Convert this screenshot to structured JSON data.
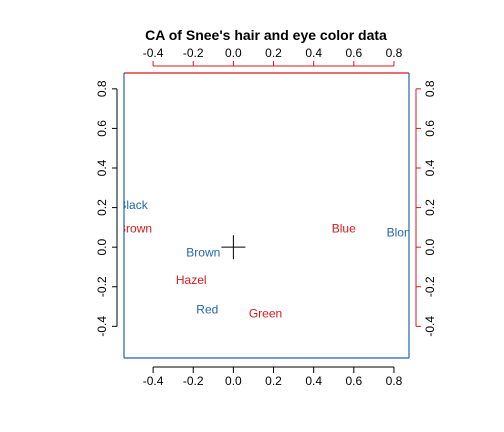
{
  "chart_data": {
    "type": "scatter",
    "title": "CA of Snee's hair and eye color data",
    "xlabel": "",
    "ylabel": "",
    "xlim": [
      -0.545,
      0.875
    ],
    "ylim": [
      -0.56,
      0.88
    ],
    "bottom_x_ticks": [
      -0.4,
      -0.2,
      0.0,
      0.2,
      0.4,
      0.6,
      0.8
    ],
    "left_y_ticks": [
      -0.4,
      -0.2,
      0.0,
      0.2,
      0.4,
      0.6,
      0.8
    ],
    "top_x_ticks": [
      -0.4,
      -0.2,
      0.0,
      0.2,
      0.4,
      0.6,
      0.8
    ],
    "right_y_ticks": [
      -0.4,
      -0.2,
      0.0,
      0.2,
      0.4,
      0.6,
      0.8
    ],
    "bottom_x_tick_labels": [
      "-0.4",
      "-0.2",
      "0.0",
      "0.2",
      "0.4",
      "0.6",
      "0.8"
    ],
    "left_y_tick_labels": [
      "-0.4",
      "-0.2",
      "0.0",
      "0.2",
      "0.4",
      "0.6",
      "0.8"
    ],
    "top_x_tick_labels": [
      "-0.4",
      "-0.2",
      "0.0",
      "0.2",
      "0.4",
      "0.6",
      "0.8"
    ],
    "right_y_tick_labels": [
      "-0.4",
      "-0.2",
      "0.0",
      "0.2",
      "0.4",
      "0.6",
      "0.8"
    ],
    "grid": false,
    "origin_marker": {
      "x": 0,
      "y": 0
    },
    "series": [
      {
        "color": "#2166ac",
        "points": [
          {
            "label": "Black",
            "x": -0.5,
            "y": 0.21
          },
          {
            "label": "Brown",
            "x": -0.15,
            "y": -0.03
          },
          {
            "label": "Red",
            "x": -0.13,
            "y": -0.32
          },
          {
            "label": "Blond",
            "x": 0.84,
            "y": 0.07
          }
        ]
      },
      {
        "color": "#d7191c",
        "points": [
          {
            "label": "Brown",
            "x": -0.49,
            "y": 0.09
          },
          {
            "label": "Hazel",
            "x": -0.21,
            "y": -0.17
          },
          {
            "label": "Green",
            "x": 0.16,
            "y": -0.34
          },
          {
            "label": "Blue",
            "x": 0.55,
            "y": 0.09
          }
        ]
      }
    ],
    "colors": {
      "bottom_left_axes": "#000000",
      "top_right_axes": "#d7191c",
      "frame_left_bottom_right": "#2166ac"
    }
  }
}
